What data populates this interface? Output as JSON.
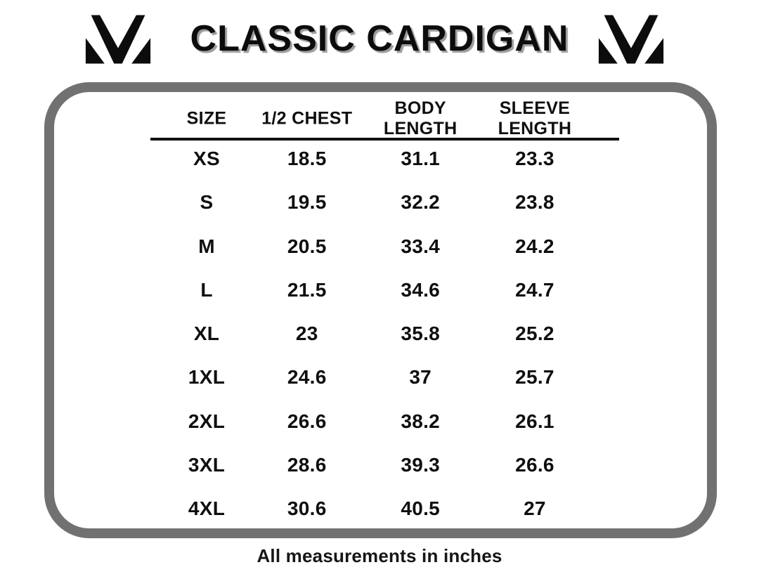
{
  "title": "CLASSIC CARDIGAN",
  "footnote": "All measurements in inches",
  "colors": {
    "border_gray": "#717171",
    "text_black": "#0f0f0f",
    "title_shadow": "#9c9c9c"
  },
  "icons": {
    "brand_monogram": "mm-monogram-icon"
  },
  "chart_data": {
    "type": "table",
    "title": "CLASSIC CARDIGAN",
    "units_note": "All measurements in inches",
    "columns": [
      "SIZE",
      "1/2 CHEST",
      "BODY LENGTH",
      "SLEEVE LENGTH"
    ],
    "rows": [
      [
        "XS",
        "18.5",
        "31.1",
        "23.3"
      ],
      [
        "S",
        "19.5",
        "32.2",
        "23.8"
      ],
      [
        "M",
        "20.5",
        "33.4",
        "24.2"
      ],
      [
        "L",
        "21.5",
        "34.6",
        "24.7"
      ],
      [
        "XL",
        "23",
        "35.8",
        "25.2"
      ],
      [
        "1XL",
        "24.6",
        "37",
        "25.7"
      ],
      [
        "2XL",
        "26.6",
        "38.2",
        "26.1"
      ],
      [
        "3XL",
        "28.6",
        "39.3",
        "26.6"
      ],
      [
        "4XL",
        "30.6",
        "40.5",
        "27"
      ]
    ]
  }
}
